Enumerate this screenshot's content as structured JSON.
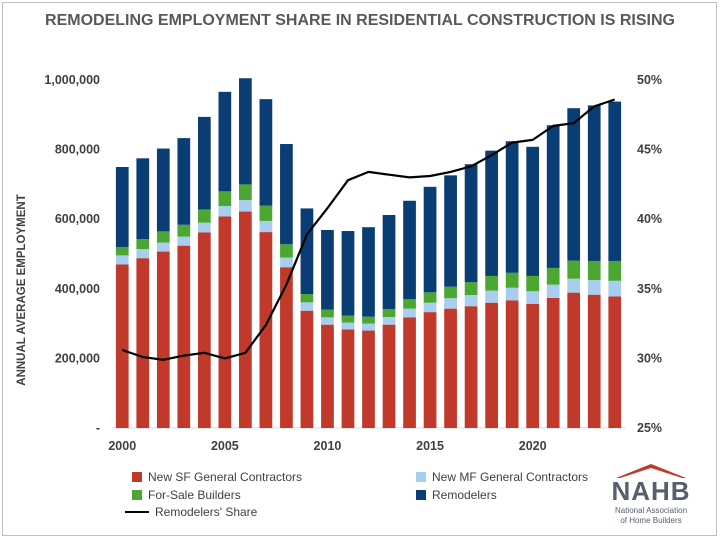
{
  "title": "REMODELING EMPLOYMENT SHARE IN RESIDENTIAL CONSTRUCTION IS RISING",
  "chart_data": {
    "type": "bar",
    "title": "REMODELING EMPLOYMENT SHARE IN RESIDENTIAL CONSTRUCTION IS RISING",
    "ylabel": "ANNUAL AVERAGE EMPLOYMENT",
    "x": [
      2000,
      2001,
      2002,
      2003,
      2004,
      2005,
      2006,
      2007,
      2008,
      2009,
      2010,
      2011,
      2012,
      2013,
      2014,
      2015,
      2016,
      2017,
      2018,
      2019,
      2020,
      2021,
      2022,
      2023,
      2024
    ],
    "x_ticks": [
      "2000",
      "2005",
      "2010",
      "2015",
      "2020"
    ],
    "ylim": [
      0,
      1000000
    ],
    "y_ticks": [
      "-",
      "200,000",
      "400,000",
      "600,000",
      "800,000",
      "1,000,000"
    ],
    "y2lim": [
      25,
      50
    ],
    "y2_ticks": [
      "25%",
      "30%",
      "35%",
      "40%",
      "45%",
      "50%"
    ],
    "stacked": true,
    "series": [
      {
        "name": "New SF General Contractors",
        "color": "#c0392b",
        "values": [
          470000,
          488000,
          507000,
          524000,
          562000,
          608000,
          622000,
          563000,
          462000,
          337000,
          297000,
          283000,
          280000,
          297000,
          318000,
          333000,
          343000,
          350000,
          360000,
          367000,
          357000,
          374000,
          389000,
          383000,
          378000
        ]
      },
      {
        "name": "New MF General Contractors",
        "color": "#a9cdef",
        "values": [
          26000,
          26000,
          26000,
          26000,
          28000,
          30000,
          33000,
          32000,
          28000,
          24000,
          21000,
          20000,
          20000,
          22000,
          25000,
          27000,
          30000,
          32000,
          35000,
          36000,
          36000,
          38000,
          40000,
          42000,
          45000
        ]
      },
      {
        "name": "For-Sale Builders",
        "color": "#4ba632",
        "values": [
          24000,
          29000,
          32000,
          34000,
          38000,
          42000,
          45000,
          44000,
          38000,
          24000,
          22000,
          20000,
          20000,
          23000,
          27000,
          30000,
          33000,
          37000,
          42000,
          43000,
          44000,
          48000,
          52000,
          55000,
          57000
        ]
      },
      {
        "name": "Remodelers",
        "color": "#0a3d73",
        "values": [
          230000,
          232000,
          238000,
          249000,
          266000,
          286000,
          305000,
          306000,
          288000,
          246000,
          229000,
          243000,
          257000,
          270000,
          283000,
          303000,
          320000,
          339000,
          360000,
          378000,
          371000,
          410000,
          438000,
          447000,
          458000
        ]
      }
    ],
    "line": {
      "name": "Remodelers' Share",
      "color": "#000000",
      "axis": "right",
      "values": [
        30.6,
        30.1,
        29.9,
        30.2,
        30.4,
        30.0,
        30.4,
        32.4,
        35.3,
        38.9,
        40.8,
        42.8,
        43.4,
        43.2,
        43.0,
        43.1,
        43.4,
        43.8,
        44.6,
        45.5,
        45.7,
        46.7,
        46.9,
        48.1,
        48.6
      ]
    }
  },
  "legend": [
    "New SF General Contractors",
    "New MF General Contractors",
    "For-Sale Builders",
    "Remodelers",
    "Remodelers' Share"
  ],
  "logo": {
    "word": "NAHB",
    "sub1": "National Association",
    "sub2": "of Home Builders",
    "red": "#c0392b",
    "gray": "#555f6d"
  }
}
